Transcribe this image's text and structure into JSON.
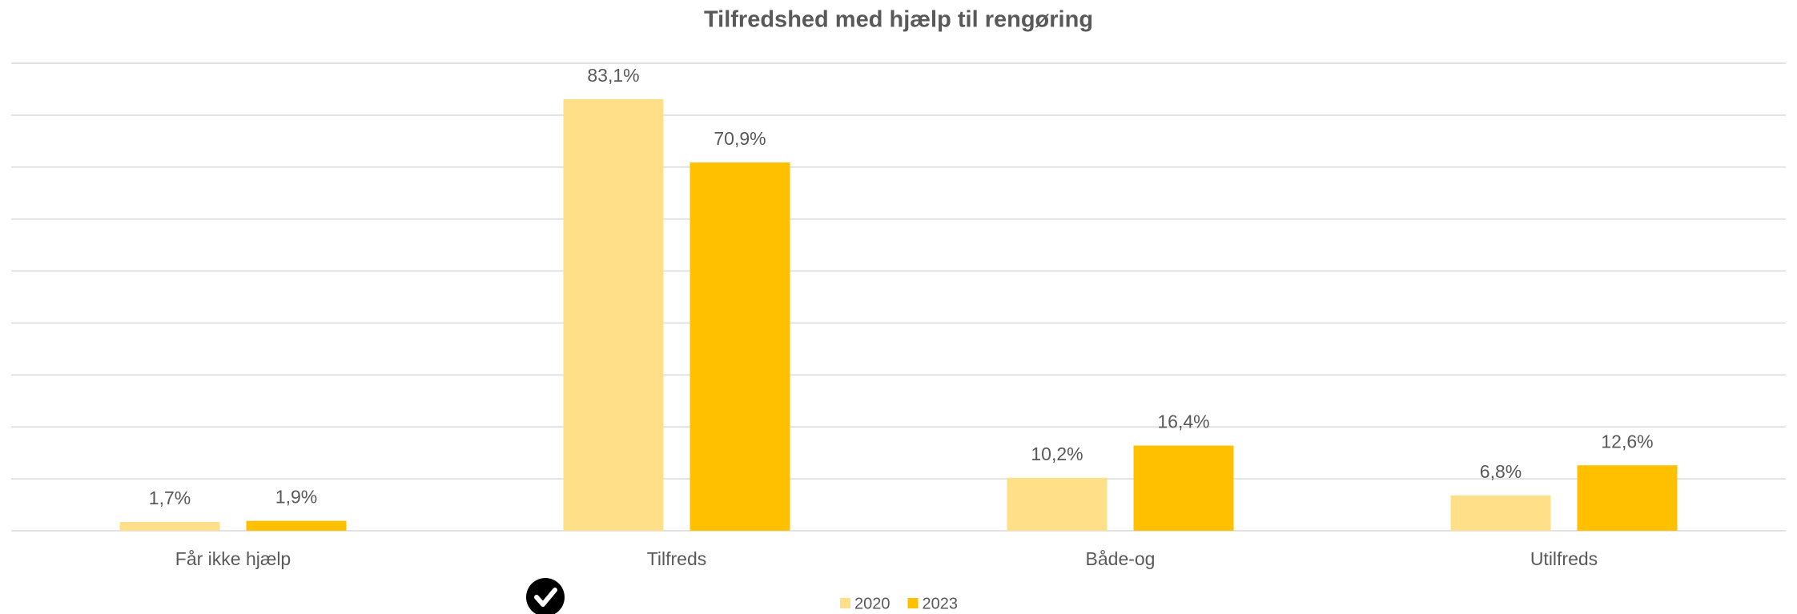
{
  "chart_data": {
    "type": "bar",
    "title": "Tilfredshed med hjælp til rengøring",
    "categories": [
      "Får ikke hjælp",
      "Tilfreds",
      "Både-og",
      "Utilfreds"
    ],
    "series": [
      {
        "name": "2020",
        "color": "#ffe089",
        "values": [
          1.7,
          83.1,
          10.2,
          6.8
        ],
        "value_labels": [
          "1,7%",
          "83,1%",
          "10,2%",
          "6,8%"
        ]
      },
      {
        "name": "2023",
        "color": "#ffc000",
        "values": [
          1.9,
          70.9,
          16.4,
          12.6
        ],
        "value_labels": [
          "1,9%",
          "70,9%",
          "16,4%",
          "12,6%"
        ]
      }
    ],
    "ylim": [
      0,
      90
    ],
    "yticks": [
      0,
      10,
      20,
      30,
      40,
      50,
      60,
      70,
      80,
      90
    ],
    "grid": true,
    "legend": "bottom"
  }
}
